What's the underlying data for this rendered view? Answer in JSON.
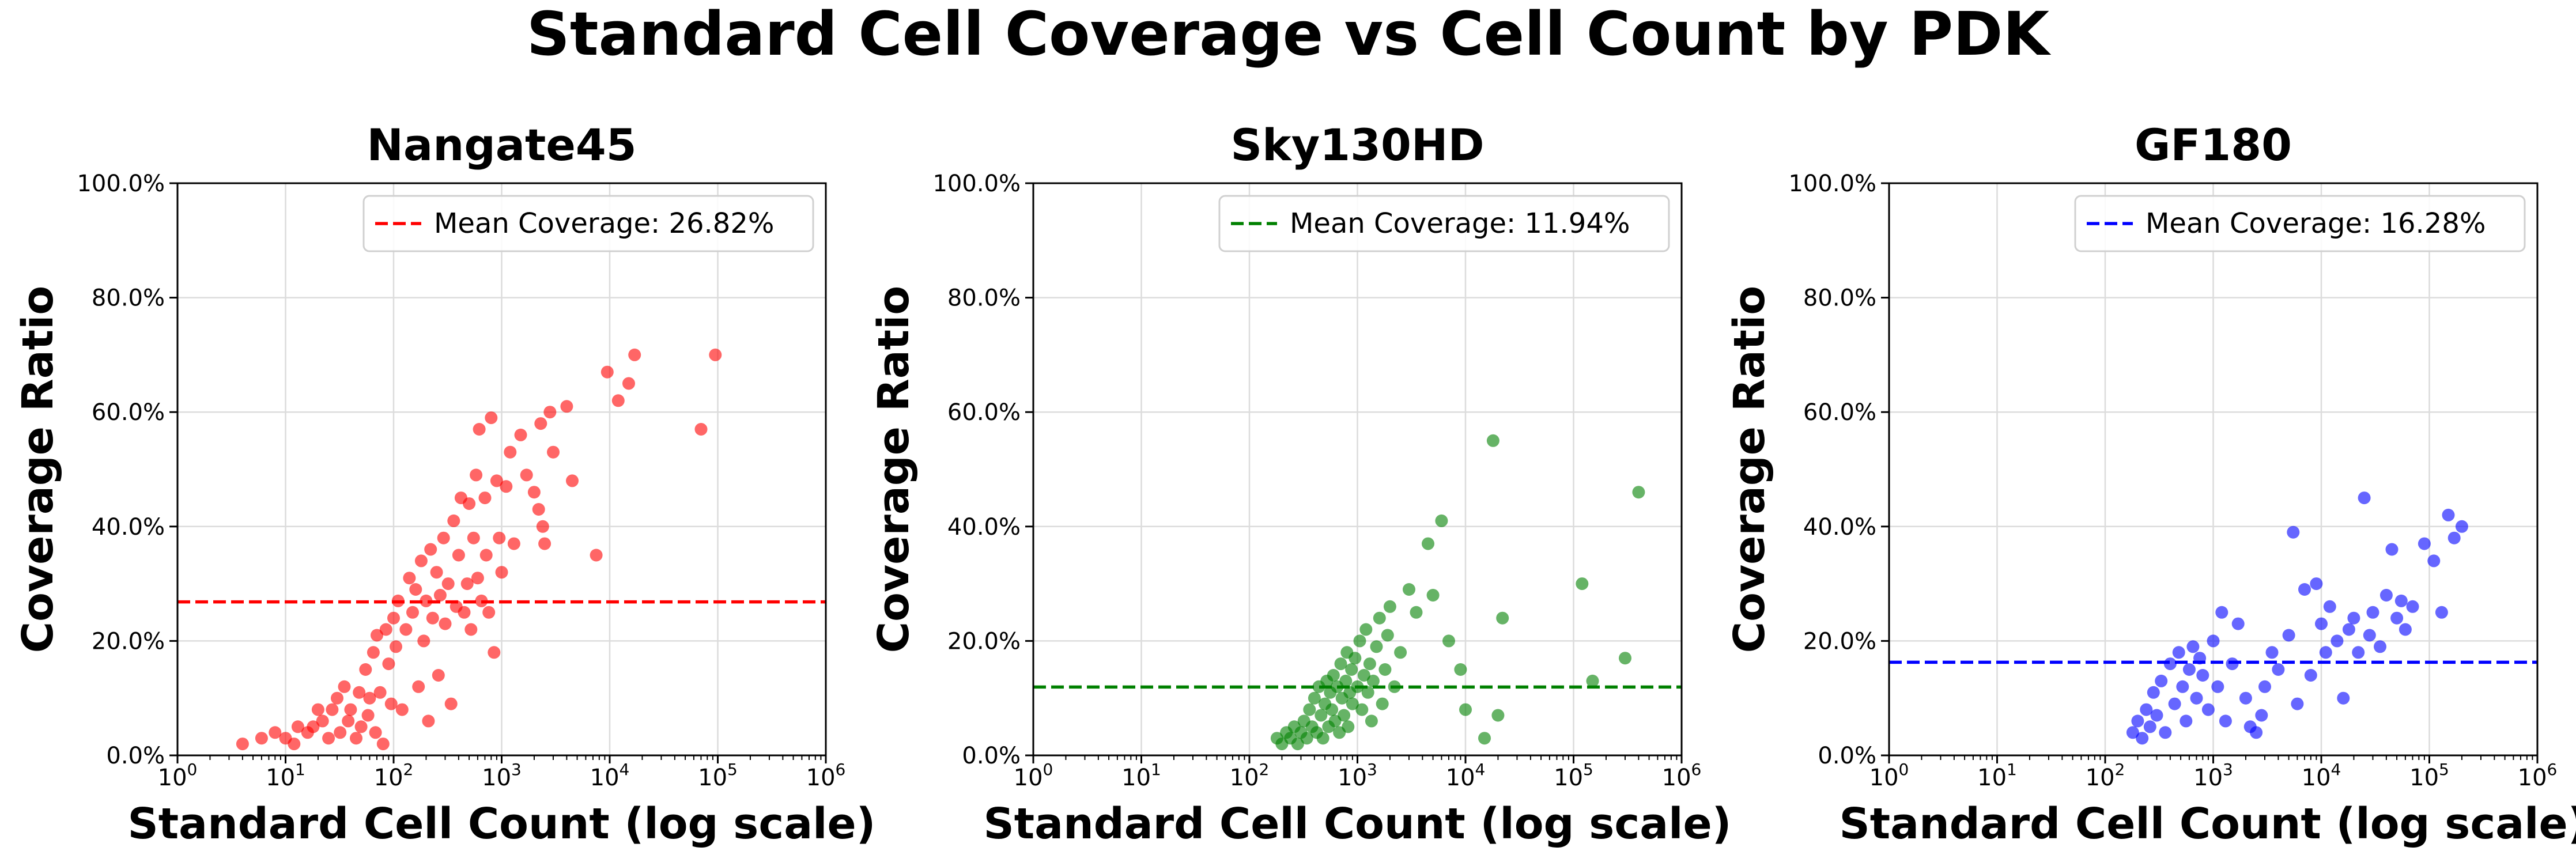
{
  "figure_title": "Standard Cell Coverage vs Cell Count by PDK",
  "chart_data": [
    {
      "type": "scatter",
      "title": "Nangate45",
      "xlabel": "Standard Cell Count (log scale)",
      "ylabel": "Coverage Ratio",
      "x_scale": "log",
      "xlim": [
        1,
        1000000
      ],
      "ylim": [
        0,
        1
      ],
      "x_ticks": [
        "10^0",
        "10^1",
        "10^2",
        "10^3",
        "10^4",
        "10^5",
        "10^6"
      ],
      "y_tick_labels": [
        "0.0%",
        "20.0%",
        "40.0%",
        "60.0%",
        "80.0%",
        "100.0%"
      ],
      "grid": true,
      "legend_position": "upper right",
      "color": "#ff0000",
      "mean": 0.2682,
      "mean_label": "Mean Coverage: 26.82%",
      "points": [
        [
          4,
          0.02
        ],
        [
          6,
          0.03
        ],
        [
          8,
          0.04
        ],
        [
          10,
          0.03
        ],
        [
          12,
          0.02
        ],
        [
          13,
          0.05
        ],
        [
          16,
          0.04
        ],
        [
          18,
          0.05
        ],
        [
          20,
          0.08
        ],
        [
          22,
          0.06
        ],
        [
          25,
          0.03
        ],
        [
          27,
          0.08
        ],
        [
          30,
          0.1
        ],
        [
          32,
          0.04
        ],
        [
          35,
          0.12
        ],
        [
          38,
          0.06
        ],
        [
          40,
          0.08
        ],
        [
          45,
          0.03
        ],
        [
          48,
          0.11
        ],
        [
          50,
          0.05
        ],
        [
          55,
          0.15
        ],
        [
          58,
          0.07
        ],
        [
          60,
          0.1
        ],
        [
          65,
          0.18
        ],
        [
          68,
          0.04
        ],
        [
          70,
          0.21
        ],
        [
          75,
          0.11
        ],
        [
          80,
          0.02
        ],
        [
          85,
          0.22
        ],
        [
          90,
          0.16
        ],
        [
          95,
          0.09
        ],
        [
          100,
          0.24
        ],
        [
          105,
          0.19
        ],
        [
          110,
          0.27
        ],
        [
          120,
          0.08
        ],
        [
          130,
          0.22
        ],
        [
          140,
          0.31
        ],
        [
          150,
          0.25
        ],
        [
          160,
          0.29
        ],
        [
          170,
          0.12
        ],
        [
          180,
          0.34
        ],
        [
          190,
          0.2
        ],
        [
          200,
          0.27
        ],
        [
          210,
          0.06
        ],
        [
          220,
          0.36
        ],
        [
          230,
          0.24
        ],
        [
          250,
          0.32
        ],
        [
          260,
          0.14
        ],
        [
          270,
          0.28
        ],
        [
          290,
          0.38
        ],
        [
          300,
          0.23
        ],
        [
          320,
          0.3
        ],
        [
          340,
          0.09
        ],
        [
          360,
          0.41
        ],
        [
          380,
          0.26
        ],
        [
          400,
          0.35
        ],
        [
          420,
          0.45
        ],
        [
          450,
          0.25
        ],
        [
          480,
          0.3
        ],
        [
          500,
          0.44
        ],
        [
          520,
          0.22
        ],
        [
          550,
          0.38
        ],
        [
          580,
          0.49
        ],
        [
          600,
          0.31
        ],
        [
          620,
          0.57
        ],
        [
          650,
          0.27
        ],
        [
          700,
          0.45
        ],
        [
          720,
          0.35
        ],
        [
          760,
          0.25
        ],
        [
          800,
          0.59
        ],
        [
          850,
          0.18
        ],
        [
          900,
          0.48
        ],
        [
          950,
          0.38
        ],
        [
          1000,
          0.32
        ],
        [
          1100,
          0.47
        ],
        [
          1200,
          0.53
        ],
        [
          1300,
          0.37
        ],
        [
          1500,
          0.56
        ],
        [
          1700,
          0.49
        ],
        [
          2000,
          0.46
        ],
        [
          2200,
          0.43
        ],
        [
          2300,
          0.58
        ],
        [
          2400,
          0.4
        ],
        [
          2500,
          0.37
        ],
        [
          2800,
          0.6
        ],
        [
          3000,
          0.53
        ],
        [
          4000,
          0.61
        ],
        [
          4500,
          0.48
        ],
        [
          7500,
          0.35
        ],
        [
          9500,
          0.67
        ],
        [
          12000,
          0.62
        ],
        [
          15000,
          0.65
        ],
        [
          17000,
          0.7
        ],
        [
          70000,
          0.57
        ],
        [
          95000,
          0.7
        ]
      ]
    },
    {
      "type": "scatter",
      "title": "Sky130HD",
      "xlabel": "Standard Cell Count (log scale)",
      "ylabel": "Coverage Ratio",
      "x_scale": "log",
      "xlim": [
        1,
        1000000
      ],
      "ylim": [
        0,
        1
      ],
      "x_ticks": [
        "10^0",
        "10^1",
        "10^2",
        "10^3",
        "10^4",
        "10^5",
        "10^6"
      ],
      "y_tick_labels": [
        "0.0%",
        "20.0%",
        "40.0%",
        "60.0%",
        "80.0%",
        "100.0%"
      ],
      "grid": true,
      "legend_position": "upper right",
      "color": "#008000",
      "mean": 0.1194,
      "mean_label": "Mean Coverage: 11.94%",
      "points": [
        [
          180,
          0.03
        ],
        [
          200,
          0.02
        ],
        [
          220,
          0.04
        ],
        [
          240,
          0.03
        ],
        [
          260,
          0.05
        ],
        [
          280,
          0.02
        ],
        [
          300,
          0.04
        ],
        [
          320,
          0.06
        ],
        [
          340,
          0.03
        ],
        [
          360,
          0.08
        ],
        [
          380,
          0.05
        ],
        [
          400,
          0.1
        ],
        [
          420,
          0.04
        ],
        [
          440,
          0.12
        ],
        [
          460,
          0.07
        ],
        [
          480,
          0.03
        ],
        [
          500,
          0.09
        ],
        [
          520,
          0.13
        ],
        [
          540,
          0.05
        ],
        [
          560,
          0.11
        ],
        [
          580,
          0.08
        ],
        [
          600,
          0.14
        ],
        [
          620,
          0.06
        ],
        [
          650,
          0.12
        ],
        [
          680,
          0.04
        ],
        [
          700,
          0.16
        ],
        [
          720,
          0.1
        ],
        [
          750,
          0.07
        ],
        [
          780,
          0.13
        ],
        [
          800,
          0.18
        ],
        [
          820,
          0.05
        ],
        [
          850,
          0.11
        ],
        [
          880,
          0.15
        ],
        [
          900,
          0.09
        ],
        [
          950,
          0.17
        ],
        [
          1000,
          0.12
        ],
        [
          1050,
          0.2
        ],
        [
          1100,
          0.08
        ],
        [
          1150,
          0.14
        ],
        [
          1200,
          0.22
        ],
        [
          1250,
          0.11
        ],
        [
          1300,
          0.16
        ],
        [
          1350,
          0.06
        ],
        [
          1400,
          0.13
        ],
        [
          1500,
          0.19
        ],
        [
          1600,
          0.24
        ],
        [
          1700,
          0.09
        ],
        [
          1800,
          0.15
        ],
        [
          1900,
          0.21
        ],
        [
          2000,
          0.26
        ],
        [
          2200,
          0.12
        ],
        [
          2500,
          0.18
        ],
        [
          3000,
          0.29
        ],
        [
          3500,
          0.25
        ],
        [
          4500,
          0.37
        ],
        [
          5000,
          0.28
        ],
        [
          6000,
          0.41
        ],
        [
          7000,
          0.2
        ],
        [
          9000,
          0.15
        ],
        [
          10000,
          0.08
        ],
        [
          15000,
          0.03
        ],
        [
          18000,
          0.55
        ],
        [
          20000,
          0.07
        ],
        [
          22000,
          0.24
        ],
        [
          120000,
          0.3
        ],
        [
          150000,
          0.13
        ],
        [
          300000,
          0.17
        ],
        [
          400000,
          0.46
        ]
      ]
    },
    {
      "type": "scatter",
      "title": "GF180",
      "xlabel": "Standard Cell Count (log scale)",
      "ylabel": "Coverage Ratio",
      "x_scale": "log",
      "xlim": [
        1,
        1000000
      ],
      "ylim": [
        0,
        1
      ],
      "x_ticks": [
        "10^0",
        "10^1",
        "10^2",
        "10^3",
        "10^4",
        "10^5",
        "10^6"
      ],
      "y_tick_labels": [
        "0.0%",
        "20.0%",
        "40.0%",
        "60.0%",
        "80.0%",
        "100.0%"
      ],
      "grid": true,
      "legend_position": "upper right",
      "color": "#0000ff",
      "mean": 0.1628,
      "mean_label": "Mean Coverage: 16.28%",
      "points": [
        [
          180,
          0.04
        ],
        [
          200,
          0.06
        ],
        [
          220,
          0.03
        ],
        [
          240,
          0.08
        ],
        [
          260,
          0.05
        ],
        [
          280,
          0.11
        ],
        [
          300,
          0.07
        ],
        [
          330,
          0.13
        ],
        [
          360,
          0.04
        ],
        [
          400,
          0.16
        ],
        [
          440,
          0.09
        ],
        [
          480,
          0.18
        ],
        [
          520,
          0.12
        ],
        [
          560,
          0.06
        ],
        [
          600,
          0.15
        ],
        [
          650,
          0.19
        ],
        [
          700,
          0.1
        ],
        [
          750,
          0.17
        ],
        [
          800,
          0.14
        ],
        [
          900,
          0.08
        ],
        [
          1000,
          0.2
        ],
        [
          1100,
          0.12
        ],
        [
          1200,
          0.25
        ],
        [
          1300,
          0.06
        ],
        [
          1500,
          0.16
        ],
        [
          1700,
          0.23
        ],
        [
          2000,
          0.1
        ],
        [
          2200,
          0.05
        ],
        [
          2500,
          0.04
        ],
        [
          2800,
          0.07
        ],
        [
          3000,
          0.12
        ],
        [
          3500,
          0.18
        ],
        [
          4000,
          0.15
        ],
        [
          5000,
          0.21
        ],
        [
          5500,
          0.39
        ],
        [
          6000,
          0.09
        ],
        [
          7000,
          0.29
        ],
        [
          8000,
          0.14
        ],
        [
          9000,
          0.3
        ],
        [
          10000,
          0.23
        ],
        [
          11000,
          0.18
        ],
        [
          12000,
          0.26
        ],
        [
          14000,
          0.2
        ],
        [
          16000,
          0.1
        ],
        [
          18000,
          0.22
        ],
        [
          20000,
          0.24
        ],
        [
          22000,
          0.18
        ],
        [
          25000,
          0.45
        ],
        [
          28000,
          0.21
        ],
        [
          30000,
          0.25
        ],
        [
          35000,
          0.19
        ],
        [
          40000,
          0.28
        ],
        [
          45000,
          0.36
        ],
        [
          50000,
          0.24
        ],
        [
          55000,
          0.27
        ],
        [
          60000,
          0.22
        ],
        [
          70000,
          0.26
        ],
        [
          90000,
          0.37
        ],
        [
          110000,
          0.34
        ],
        [
          130000,
          0.25
        ],
        [
          150000,
          0.42
        ],
        [
          170000,
          0.38
        ],
        [
          200000,
          0.4
        ]
      ]
    }
  ]
}
